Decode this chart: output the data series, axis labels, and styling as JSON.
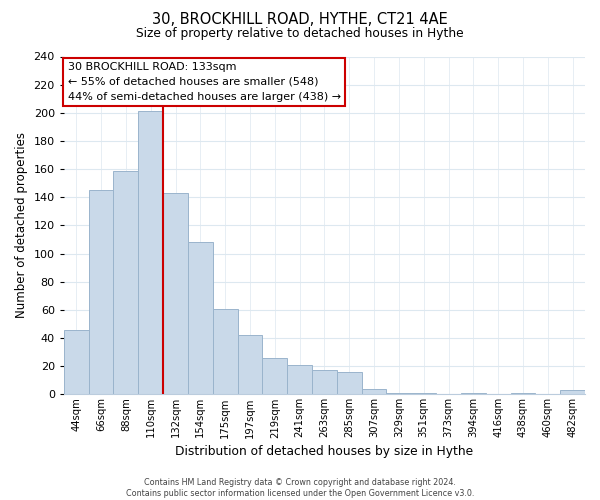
{
  "title": "30, BROCKHILL ROAD, HYTHE, CT21 4AE",
  "subtitle": "Size of property relative to detached houses in Hythe",
  "xlabel": "Distribution of detached houses by size in Hythe",
  "ylabel": "Number of detached properties",
  "bar_labels": [
    "44sqm",
    "66sqm",
    "88sqm",
    "110sqm",
    "132sqm",
    "154sqm",
    "175sqm",
    "197sqm",
    "219sqm",
    "241sqm",
    "263sqm",
    "285sqm",
    "307sqm",
    "329sqm",
    "351sqm",
    "373sqm",
    "394sqm",
    "416sqm",
    "438sqm",
    "460sqm",
    "482sqm"
  ],
  "bar_values": [
    46,
    145,
    159,
    201,
    143,
    108,
    61,
    42,
    26,
    21,
    17,
    16,
    4,
    1,
    1,
    0,
    1,
    0,
    1,
    0,
    3
  ],
  "bar_color": "#c9d9e9",
  "bar_edge_color": "#9ab4cc",
  "marker_line_index": 4,
  "marker_line_color": "#cc0000",
  "annotation_title": "30 BROCKHILL ROAD: 133sqm",
  "annotation_line1": "← 55% of detached houses are smaller (548)",
  "annotation_line2": "44% of semi-detached houses are larger (438) →",
  "annotation_box_color": "white",
  "annotation_box_edge": "#cc0000",
  "ylim": [
    0,
    240
  ],
  "yticks": [
    0,
    20,
    40,
    60,
    80,
    100,
    120,
    140,
    160,
    180,
    200,
    220,
    240
  ],
  "footer1": "Contains HM Land Registry data © Crown copyright and database right 2024.",
  "footer2": "Contains public sector information licensed under the Open Government Licence v3.0.",
  "background_color": "#ffffff",
  "grid_color": "#dde8f0"
}
